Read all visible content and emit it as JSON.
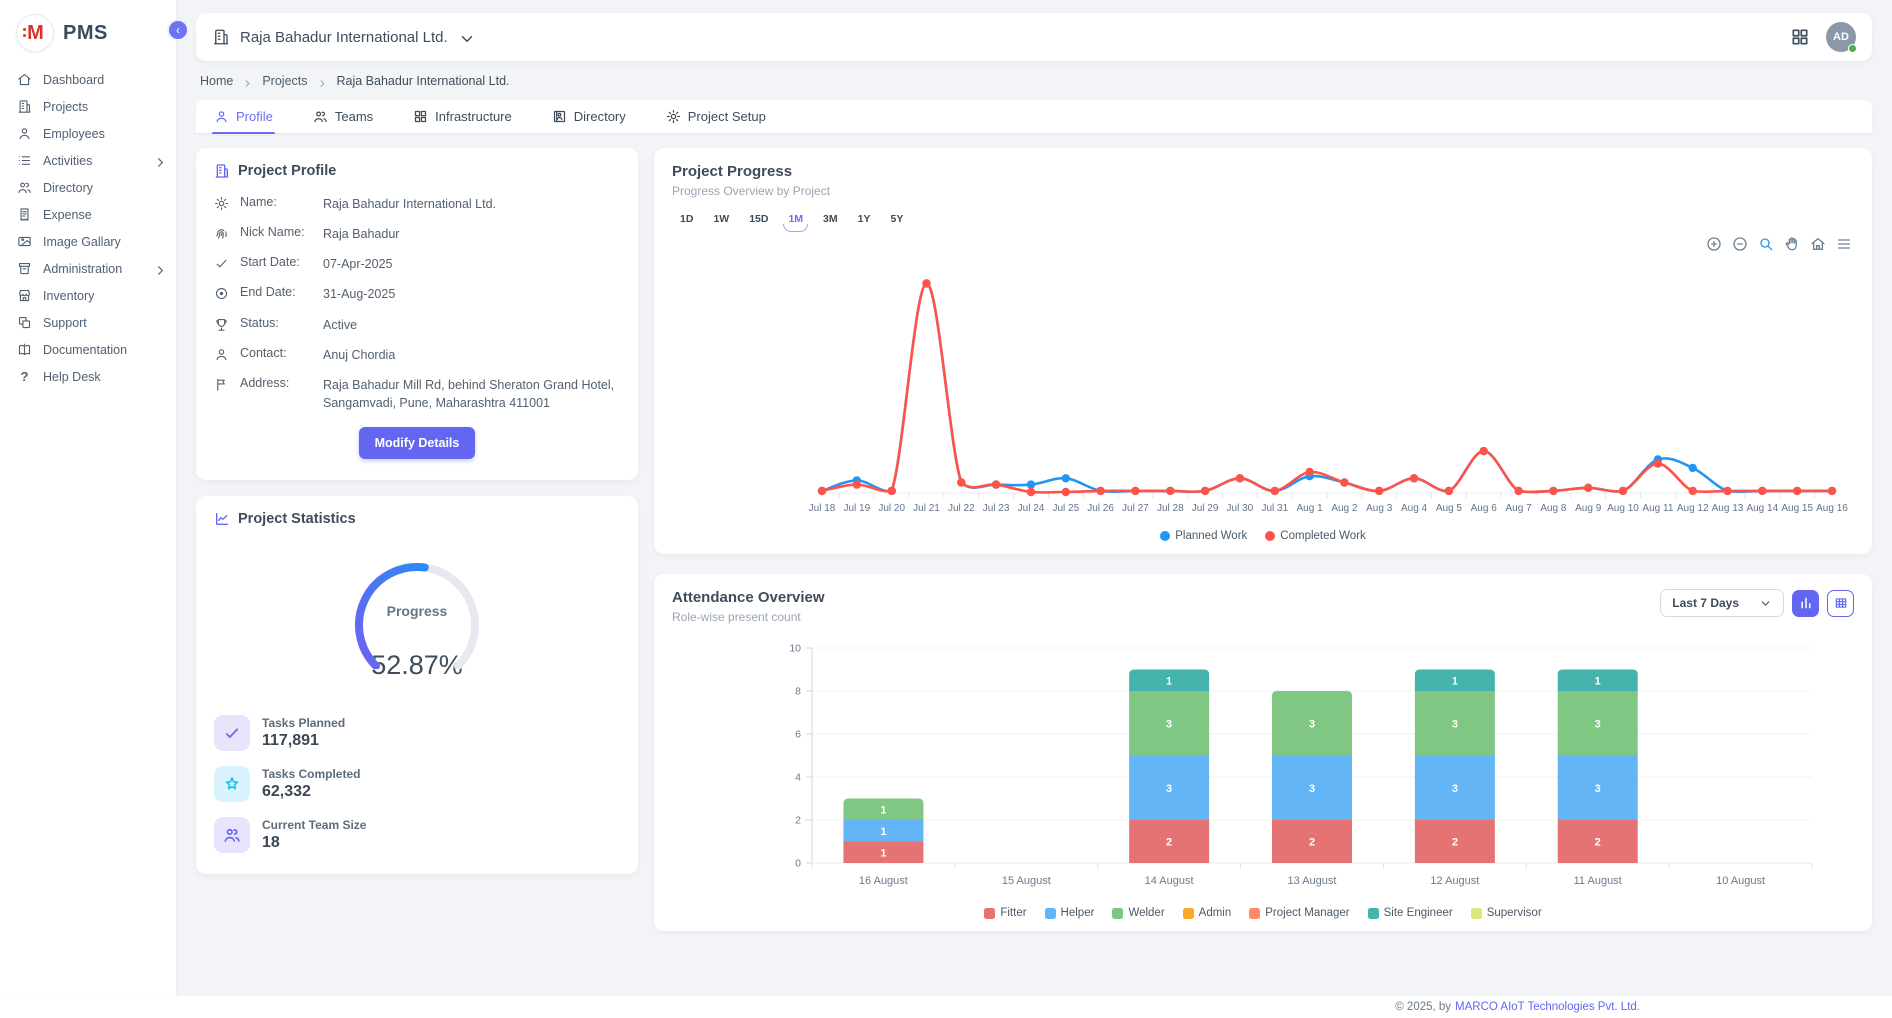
{
  "brand": {
    "name": "PMS"
  },
  "sidebar": {
    "items": [
      {
        "label": "Dashboard",
        "icon": "home"
      },
      {
        "label": "Projects",
        "icon": "building"
      },
      {
        "label": "Employees",
        "icon": "person"
      },
      {
        "label": "Activities",
        "icon": "list",
        "submenu": true
      },
      {
        "label": "Directory",
        "icon": "people"
      },
      {
        "label": "Expense",
        "icon": "receipt"
      },
      {
        "label": "Image Gallary",
        "icon": "image"
      },
      {
        "label": "Administration",
        "icon": "archive",
        "submenu": true
      },
      {
        "label": "Inventory",
        "icon": "store"
      },
      {
        "label": "Support",
        "icon": "copy"
      },
      {
        "label": "Documentation",
        "icon": "book"
      },
      {
        "label": "Help Desk",
        "icon": "help"
      }
    ]
  },
  "header": {
    "company": "Raja Bahadur International Ltd.",
    "avatar_initials": "AD"
  },
  "breadcrumb": [
    {
      "label": "Home"
    },
    {
      "label": "Projects"
    },
    {
      "label": "Raja Bahadur International Ltd.",
      "current": true
    }
  ],
  "tabs": [
    {
      "label": "Profile",
      "icon": "person",
      "active": true
    },
    {
      "label": "Teams",
      "icon": "people"
    },
    {
      "label": "Infrastructure",
      "icon": "grid"
    },
    {
      "label": "Directory",
      "icon": "id-card"
    },
    {
      "label": "Project Setup",
      "icon": "gear"
    }
  ],
  "profile_card": {
    "title": "Project Profile",
    "fields": [
      {
        "icon": "gear",
        "label": "Name:",
        "value": "Raja Bahadur International Ltd."
      },
      {
        "icon": "fingerprint",
        "label": "Nick Name:",
        "value": "Raja Bahadur"
      },
      {
        "icon": "check",
        "label": "Start Date:",
        "value": "07-Apr-2025"
      },
      {
        "icon": "disc",
        "label": "End Date:",
        "value": "31-Aug-2025"
      },
      {
        "icon": "trophy",
        "label": "Status:",
        "value": "Active"
      },
      {
        "icon": "person",
        "label": "Contact:",
        "value": "Anuj Chordia"
      },
      {
        "icon": "flag",
        "label": "Address:",
        "value": "Raja Bahadur Mill Rd, behind Sheraton Grand Hotel, Sangamvadi, Pune, Maharashtra 411001"
      }
    ],
    "button": "Modify Details"
  },
  "stats_card": {
    "title": "Project Statistics",
    "stats": [
      {
        "icon": "check",
        "label": "Tasks Planned",
        "value": "117,891",
        "tile_bg": "#e7e4fb",
        "icon_color": "#6366f1"
      },
      {
        "icon": "star",
        "label": "Tasks Completed",
        "value": "62,332",
        "tile_bg": "#d8f3fd",
        "icon_color": "#18c5f0"
      },
      {
        "icon": "people",
        "label": "Current Team Size",
        "value": "18",
        "tile_bg": "#e7e4fb",
        "icon_color": "#6366f1"
      }
    ]
  },
  "progress_card": {
    "title": "Project Progress",
    "subtitle": "Progress Overview by Project",
    "ranges": [
      "1D",
      "1W",
      "15D",
      "1M",
      "3M",
      "1Y",
      "5Y"
    ],
    "active_range": "1M",
    "toolbar": [
      "zoom-in",
      "zoom-out",
      "zoom-area",
      "pan",
      "reset-home",
      "menu"
    ]
  },
  "attendance_card": {
    "title": "Attendance Overview",
    "subtitle": "Role-wise present count",
    "filter_value": "Last 7 Days",
    "view_buttons": [
      "bar-view",
      "table-view"
    ]
  },
  "footer": {
    "copyright": "© 2025, by",
    "company": "MARCO AIoT Technologies Pvt. Ltd."
  },
  "colors": {
    "accent": "#6366f1",
    "planned": "#2196f3",
    "completed": "#ff5349"
  },
  "chart_data": [
    {
      "type": "radial-gauge",
      "label": "Progress",
      "value_pct": 52.87,
      "display": "52.87%",
      "arc_degrees": 270,
      "track_color": "#e6e9ef",
      "gradient": [
        "#6e62f2",
        "#2b8af3"
      ]
    },
    {
      "type": "line",
      "title": "Project Progress",
      "x": [
        "Jul 18",
        "Jul 19",
        "Jul 20",
        "Jul 21",
        "Jul 22",
        "Jul 23",
        "Jul 24",
        "Jul 25",
        "Jul 26",
        "Jul 27",
        "Jul 28",
        "Jul 29",
        "Jul 30",
        "Jul 31",
        "Aug 1",
        "Aug 2",
        "Aug 3",
        "Aug 4",
        "Aug 5",
        "Aug 6",
        "Aug 7",
        "Aug 8",
        "Aug 9",
        "Aug 10",
        "Aug 11",
        "Aug 12",
        "Aug 13",
        "Aug 14",
        "Aug 15",
        "Aug 16"
      ],
      "series": [
        {
          "name": "Planned Work",
          "color": "#2196f3",
          "values": [
            1,
            6,
            1,
            100,
            5,
            4,
            4,
            7,
            1,
            1,
            1,
            1,
            7,
            1,
            8,
            5,
            1,
            7,
            1,
            20,
            1,
            1,
            2.5,
            1,
            16,
            12,
            1,
            1,
            1,
            1
          ]
        },
        {
          "name": "Completed Work",
          "color": "#ff5349",
          "values": [
            1,
            4,
            1,
            100,
            5,
            4,
            0.5,
            0.5,
            1,
            1,
            1,
            1,
            7,
            1,
            10,
            5,
            1,
            7,
            1,
            20,
            1,
            1,
            2.5,
            1,
            14,
            1,
            1,
            1,
            1,
            1
          ]
        }
      ],
      "ylim": [
        0,
        105
      ],
      "y_axis_hidden": true,
      "legend_position": "bottom",
      "note": "values estimated relative to unlabeled axis, peak normalized to 100"
    },
    {
      "type": "bar",
      "stacked": true,
      "title": "Attendance Overview",
      "categories": [
        "16 August",
        "15 August",
        "14 August",
        "13 August",
        "12 August",
        "11 August",
        "10 August"
      ],
      "series": [
        {
          "name": "Fitter",
          "color": "#e57373",
          "values": [
            1,
            0,
            2,
            2,
            2,
            2,
            0
          ]
        },
        {
          "name": "Helper",
          "color": "#64b5f6",
          "values": [
            1,
            0,
            3,
            3,
            3,
            3,
            0
          ]
        },
        {
          "name": "Welder",
          "color": "#81c784",
          "values": [
            1,
            0,
            3,
            3,
            3,
            3,
            0
          ]
        },
        {
          "name": "Admin",
          "color": "#ffa726",
          "values": [
            0,
            0,
            0,
            0,
            0,
            0,
            0
          ]
        },
        {
          "name": "Project Manager",
          "color": "#ff8a65",
          "values": [
            0,
            0,
            0,
            0,
            0,
            0,
            0
          ]
        },
        {
          "name": "Site Engineer",
          "color": "#45b3ab",
          "values": [
            0,
            0,
            1,
            0,
            1,
            1,
            0
          ]
        },
        {
          "name": "Supervisor",
          "color": "#dce775",
          "values": [
            0,
            0,
            0,
            0,
            0,
            0,
            0
          ]
        }
      ],
      "ylim": [
        0,
        10
      ],
      "yticks": [
        0,
        2,
        4,
        6,
        8,
        10
      ],
      "grid": true,
      "legend_position": "bottom",
      "data_labels": true
    }
  ]
}
